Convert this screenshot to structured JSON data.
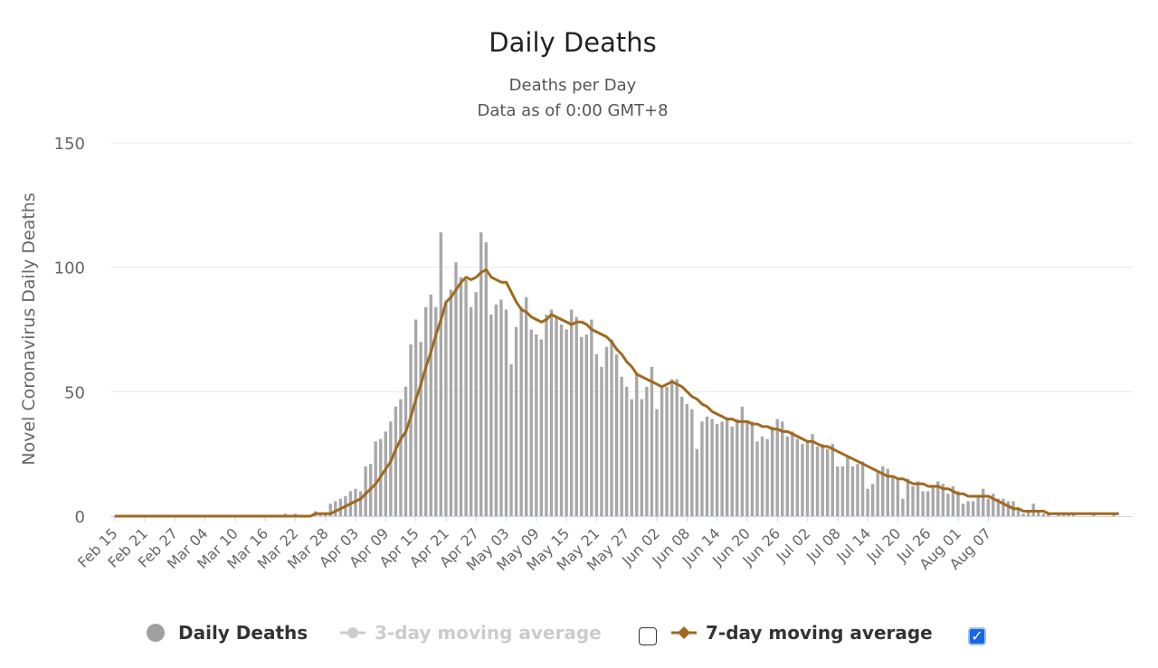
{
  "title": "Daily Deaths",
  "subtitle_1": "Deaths per Day",
  "subtitle_2": "Data as of 0:00 GMT+8",
  "colors": {
    "bars": "#a8a8a8",
    "ma7": "#a0691e",
    "ma3_disabled": "#cccccc",
    "grid": "#e6e6e6",
    "checkbox_on": "#1a66e0"
  },
  "legend": {
    "daily_deaths": "Daily Deaths",
    "ma3": "3-day moving average",
    "ma7": "7-day moving average",
    "ma3_checked": false,
    "ma7_checked": true
  },
  "chart_data": {
    "type": "bar",
    "title": "Daily Deaths",
    "subtitle": [
      "Deaths per Day",
      "Data as of 0:00 GMT+8"
    ],
    "xlabel": "",
    "ylabel": "Novel Coronavirus Daily Deaths",
    "ylim": [
      0,
      150
    ],
    "yticks": [
      0,
      50,
      100,
      150
    ],
    "grid": true,
    "legend_position": "bottom",
    "x_start": "Feb 15",
    "x_tick_labels": [
      "Feb 15",
      "Feb 21",
      "Feb 27",
      "Mar 04",
      "Mar 10",
      "Mar 16",
      "Mar 22",
      "Mar 28",
      "Apr 03",
      "Apr 09",
      "Apr 15",
      "Apr 21",
      "Apr 27",
      "May 03",
      "May 09",
      "May 15",
      "May 21",
      "May 27",
      "Jun 02",
      "Jun 08",
      "Jun 14",
      "Jun 20",
      "Jun 26",
      "Jul 02",
      "Jul 08",
      "Jul 14",
      "Jul 20",
      "Jul 26",
      "Aug 01",
      "Aug 07"
    ],
    "series": [
      {
        "name": "Daily Deaths",
        "type": "bar",
        "values": [
          0,
          0,
          0,
          0,
          0,
          0,
          0,
          0,
          0,
          0,
          0,
          0,
          0,
          0,
          0,
          0,
          0,
          0,
          0,
          0,
          0,
          0,
          0,
          0,
          0,
          0,
          0,
          0,
          0,
          0,
          0,
          0,
          0,
          0,
          1,
          0,
          1,
          0,
          0,
          0,
          2,
          1,
          1,
          5,
          6,
          7,
          8,
          10,
          11,
          10,
          20,
          21,
          30,
          31,
          34,
          38,
          44,
          47,
          52,
          69,
          79,
          70,
          84,
          89,
          84,
          114,
          86,
          91,
          102,
          96,
          95,
          84,
          90,
          114,
          110,
          81,
          85,
          87,
          83,
          61,
          76,
          84,
          88,
          75,
          73,
          71,
          81,
          83,
          80,
          77,
          75,
          83,
          80,
          72,
          73,
          79,
          65,
          60,
          68,
          71,
          65,
          56,
          52,
          47,
          57,
          47,
          52,
          60,
          43,
          52,
          52,
          55,
          55,
          48,
          45,
          43,
          27,
          38,
          40,
          39,
          37,
          38,
          39,
          36,
          39,
          44,
          38,
          38,
          30,
          32,
          31,
          36,
          39,
          38,
          32,
          34,
          31,
          29,
          30,
          33,
          28,
          29,
          27,
          29,
          20,
          20,
          24,
          20,
          21,
          22,
          11,
          13,
          18,
          20,
          19,
          16,
          15,
          7,
          15,
          12,
          14,
          10,
          10,
          12,
          14,
          13,
          9,
          12,
          10,
          5,
          6,
          6,
          8,
          11,
          7,
          9,
          7,
          7,
          6,
          6,
          3,
          1,
          2,
          5,
          2,
          1,
          1,
          0,
          1,
          1,
          1,
          1,
          0,
          0,
          0,
          1,
          0,
          0,
          0,
          1,
          0,
          0
        ]
      },
      {
        "name": "7-day moving average",
        "type": "line",
        "values": [
          0,
          0,
          0,
          0,
          0,
          0,
          0,
          0,
          0,
          0,
          0,
          0,
          0,
          0,
          0,
          0,
          0,
          0,
          0,
          0,
          0,
          0,
          0,
          0,
          0,
          0,
          0,
          0,
          0,
          0,
          0,
          0,
          0,
          0,
          0,
          0,
          0,
          0,
          0,
          0,
          1,
          1,
          1,
          1,
          2,
          3,
          4,
          5,
          6,
          7,
          9,
          11,
          13,
          16,
          19,
          22,
          27,
          31,
          34,
          40,
          47,
          53,
          60,
          66,
          73,
          79,
          86,
          88,
          91,
          94,
          96,
          95,
          96,
          98,
          99,
          96,
          95,
          94,
          94,
          90,
          86,
          83,
          82,
          80,
          79,
          78,
          79,
          81,
          80,
          79,
          78,
          77,
          78,
          78,
          77,
          75,
          74,
          73,
          72,
          70,
          67,
          65,
          62,
          60,
          57,
          56,
          55,
          54,
          53,
          52,
          53,
          54,
          53,
          52,
          50,
          48,
          47,
          45,
          44,
          42,
          41,
          40,
          39,
          39,
          38,
          38,
          38,
          37,
          37,
          36,
          36,
          35,
          35,
          34,
          34,
          33,
          32,
          31,
          30,
          30,
          29,
          28,
          28,
          27,
          26,
          25,
          24,
          23,
          22,
          21,
          20,
          19,
          18,
          17,
          16,
          16,
          15,
          15,
          14,
          13,
          13,
          13,
          12,
          12,
          12,
          11,
          11,
          10,
          9,
          9,
          8,
          8,
          8,
          8,
          8,
          7,
          6,
          5,
          4,
          3,
          3,
          2,
          2,
          2,
          2,
          2,
          1,
          1,
          1,
          1,
          1,
          1,
          1,
          1,
          1,
          1,
          1,
          1,
          1,
          1,
          1
        ]
      },
      {
        "name": "3-day moving average",
        "type": "line",
        "visible": false,
        "values": []
      }
    ]
  }
}
